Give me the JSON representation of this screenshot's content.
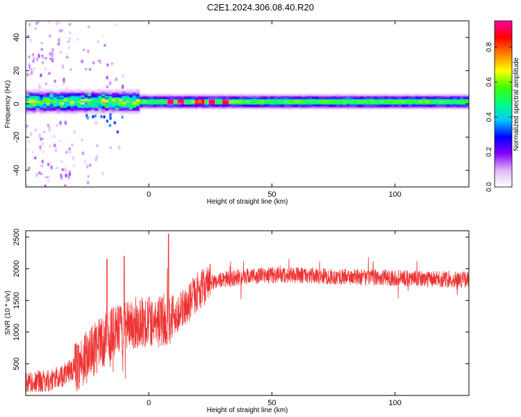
{
  "title": "C2E1.2024.306.08.40.R20",
  "chart_data": [
    {
      "type": "heatmap",
      "title": "",
      "xlabel": "Height of straight line (km)",
      "ylabel": "Frequency (Hz)",
      "xlim": [
        -50,
        130
      ],
      "ylim": [
        -50,
        50
      ],
      "x_ticks": [
        0,
        50,
        100
      ],
      "y_ticks": [
        -40,
        -20,
        0,
        20,
        40
      ],
      "colorbar": {
        "label": "Normalized spectral amplitude",
        "range": [
          0,
          0.95
        ],
        "ticks": [
          0.0,
          0.2,
          0.4,
          0.6,
          0.8
        ],
        "colormap": [
          "#ffffff",
          "#e0b8f8",
          "#8800ff",
          "#0000ff",
          "#00c8ff",
          "#00ff80",
          "#40ff00",
          "#ffff00",
          "#ff8000",
          "#ff0000",
          "#ff00a0"
        ]
      },
      "features": {
        "carrier_frequency_hz": 1,
        "carrier_from_km": 0,
        "carrier_to_km": 130,
        "noisy_region_km": [
          -50,
          -5
        ],
        "hotspots_km": [
          8,
          12,
          20,
          25,
          30
        ]
      },
      "grid": false
    },
    {
      "type": "line",
      "title": "",
      "xlabel": "Height of straight line (km)",
      "ylabel": "SNR (10 * v/v)",
      "xlim": [
        -50,
        130
      ],
      "ylim": [
        0,
        2600
      ],
      "x_ticks": [
        0,
        50,
        100
      ],
      "y_ticks": [
        500,
        1000,
        1500,
        2000,
        2500
      ],
      "color": "#ee3333",
      "series": [
        {
          "x": [
            -50,
            -45,
            -40,
            -35,
            -30,
            -25,
            -20,
            -15,
            -10,
            -5,
            0,
            5,
            10,
            15,
            20,
            25,
            30,
            40,
            50,
            60,
            70,
            80,
            90,
            100,
            110,
            120,
            130
          ],
          "values": [
            220,
            200,
            240,
            310,
            450,
            620,
            800,
            980,
            1050,
            1150,
            1180,
            1170,
            1250,
            1400,
            1650,
            1780,
            1830,
            1880,
            1900,
            1900,
            1880,
            1870,
            1860,
            1860,
            1840,
            1830,
            1830
          ]
        }
      ],
      "peaks": [
        {
          "x": 8,
          "y": 2550
        },
        {
          "x": -17,
          "y": 2150
        },
        {
          "x": -10,
          "y": 2200
        }
      ],
      "grid": false
    }
  ]
}
